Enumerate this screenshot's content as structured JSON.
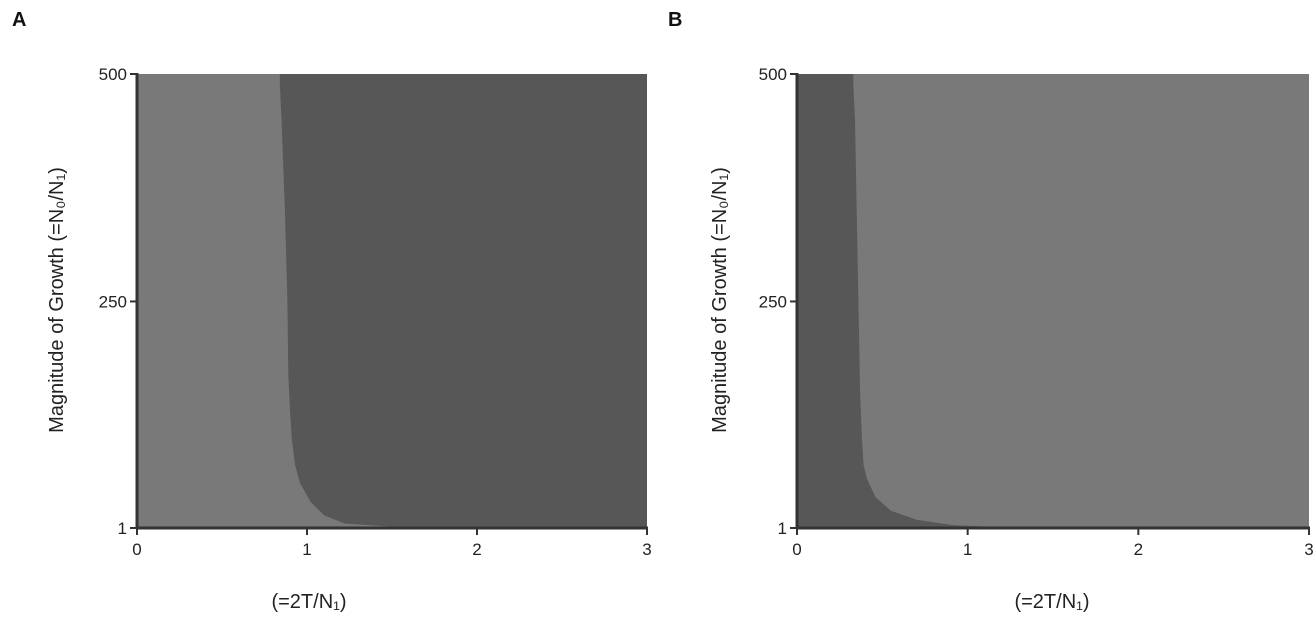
{
  "chart_data": [
    {
      "type": "area",
      "panel_label": "A",
      "xlabel": "(=2T/N₁)",
      "ylabel": "Magnitude of Growth (=N₀/N₁)",
      "xlim": [
        0,
        3
      ],
      "ylim": [
        1,
        500
      ],
      "x_ticks": [
        "0",
        "1",
        "2",
        "3"
      ],
      "y_ticks": [
        "1",
        "250",
        "500"
      ],
      "grid": false,
      "legend": "none",
      "regions": [
        {
          "color": "#797979",
          "side": "left of boundary"
        },
        {
          "color": "#575757",
          "side": "right of boundary"
        }
      ],
      "boundary": {
        "x": [
          1.62,
          1.22,
          1.1,
          1.02,
          0.96,
          0.93,
          0.91,
          0.9,
          0.89,
          0.885,
          0.87,
          0.85,
          0.84,
          0.84
        ],
        "y": [
          1,
          6,
          15,
          30,
          50,
          70,
          100,
          130,
          170,
          250,
          350,
          450,
          490,
          500
        ]
      }
    },
    {
      "type": "area",
      "panel_label": "B",
      "xlabel": "(=2T/N₁)",
      "ylabel": "Magnitude of Growth (=N₀/N₁)",
      "xlim": [
        0,
        3
      ],
      "ylim": [
        1,
        500
      ],
      "x_ticks": [
        "0",
        "1",
        "2",
        "3"
      ],
      "y_ticks": [
        "1",
        "250",
        "500"
      ],
      "grid": false,
      "legend": "none",
      "regions": [
        {
          "color": "#575757",
          "side": "left of boundary"
        },
        {
          "color": "#797979",
          "side": "right of boundary"
        }
      ],
      "boundary": {
        "x": [
          1.32,
          0.92,
          0.7,
          0.55,
          0.46,
          0.41,
          0.39,
          0.38,
          0.37,
          0.36,
          0.35,
          0.34,
          0.33,
          0.33
        ],
        "y": [
          1,
          4,
          10,
          20,
          35,
          55,
          70,
          100,
          150,
          250,
          350,
          450,
          490,
          500
        ]
      }
    }
  ]
}
